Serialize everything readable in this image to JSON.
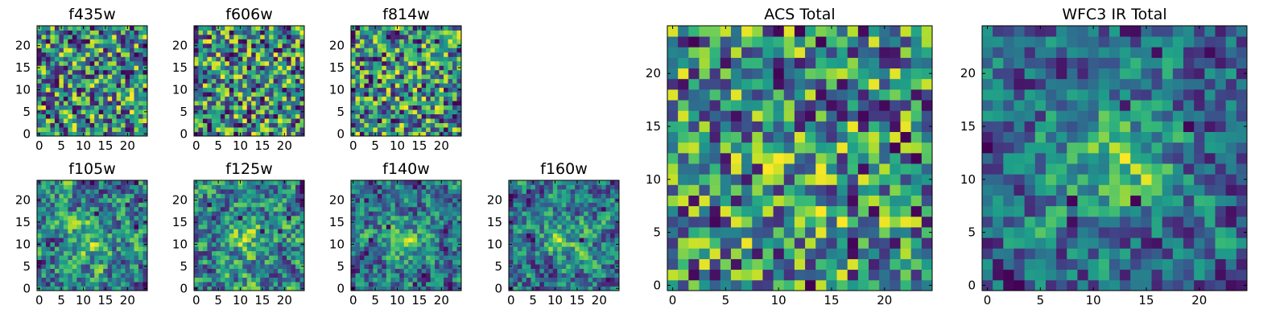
{
  "chart_data": [
    {
      "type": "heatmap",
      "title": "f435w",
      "xlim": [
        0,
        24
      ],
      "ylim": [
        0,
        24
      ],
      "xticks": [
        0,
        5,
        10,
        15,
        20
      ],
      "yticks": [
        0,
        5,
        10,
        15,
        20
      ],
      "colormap": "viridis",
      "seed": 11,
      "smooth": 0,
      "blob": 0.0
    },
    {
      "type": "heatmap",
      "title": "f606w",
      "xlim": [
        0,
        24
      ],
      "ylim": [
        0,
        24
      ],
      "xticks": [
        0,
        5,
        10,
        15,
        20
      ],
      "yticks": [
        0,
        5,
        10,
        15,
        20
      ],
      "colormap": "viridis",
      "seed": 23,
      "smooth": 0,
      "blob": 0.0
    },
    {
      "type": "heatmap",
      "title": "f814w",
      "xlim": [
        0,
        24
      ],
      "ylim": [
        0,
        24
      ],
      "xticks": [
        0,
        5,
        10,
        15,
        20
      ],
      "yticks": [
        0,
        5,
        10,
        15,
        20
      ],
      "colormap": "viridis",
      "seed": 37,
      "smooth": 0,
      "blob": 0.05
    },
    {
      "type": "heatmap",
      "title": "f105w",
      "xlim": [
        0,
        24
      ],
      "ylim": [
        0,
        24
      ],
      "xticks": [
        0,
        5,
        10,
        15,
        20
      ],
      "yticks": [
        0,
        5,
        10,
        15,
        20
      ],
      "colormap": "viridis",
      "seed": 41,
      "smooth": 1,
      "blob": 0.25
    },
    {
      "type": "heatmap",
      "title": "f125w",
      "xlim": [
        0,
        24
      ],
      "ylim": [
        0,
        24
      ],
      "xticks": [
        0,
        5,
        10,
        15,
        20
      ],
      "yticks": [
        0,
        5,
        10,
        15,
        20
      ],
      "colormap": "viridis",
      "seed": 53,
      "smooth": 1,
      "blob": 0.2
    },
    {
      "type": "heatmap",
      "title": "f140w",
      "xlim": [
        0,
        24
      ],
      "ylim": [
        0,
        24
      ],
      "xticks": [
        0,
        5,
        10,
        15,
        20
      ],
      "yticks": [
        0,
        5,
        10,
        15,
        20
      ],
      "colormap": "viridis",
      "seed": 67,
      "smooth": 1,
      "blob": 0.25
    },
    {
      "type": "heatmap",
      "title": "f160w",
      "xlim": [
        0,
        24
      ],
      "ylim": [
        0,
        24
      ],
      "xticks": [
        0,
        5,
        10,
        15,
        20
      ],
      "yticks": [
        0,
        5,
        10,
        15,
        20
      ],
      "colormap": "viridis",
      "seed": 79,
      "smooth": 1,
      "blob": 0.3
    },
    {
      "type": "heatmap",
      "title": "ACS Total",
      "xlim": [
        0,
        24
      ],
      "ylim": [
        0,
        24
      ],
      "xticks": [
        0,
        5,
        10,
        15,
        20
      ],
      "yticks": [
        0,
        5,
        10,
        15,
        20
      ],
      "colormap": "viridis",
      "seed": 97,
      "smooth": 0,
      "blob": 0.1
    },
    {
      "type": "heatmap",
      "title": "WFC3 IR Total",
      "xlim": [
        0,
        24
      ],
      "ylim": [
        0,
        24
      ],
      "xticks": [
        0,
        5,
        10,
        15,
        20
      ],
      "yticks": [
        0,
        5,
        10,
        15,
        20
      ],
      "colormap": "viridis",
      "seed": 131,
      "smooth": 1,
      "blob": 0.45
    }
  ]
}
